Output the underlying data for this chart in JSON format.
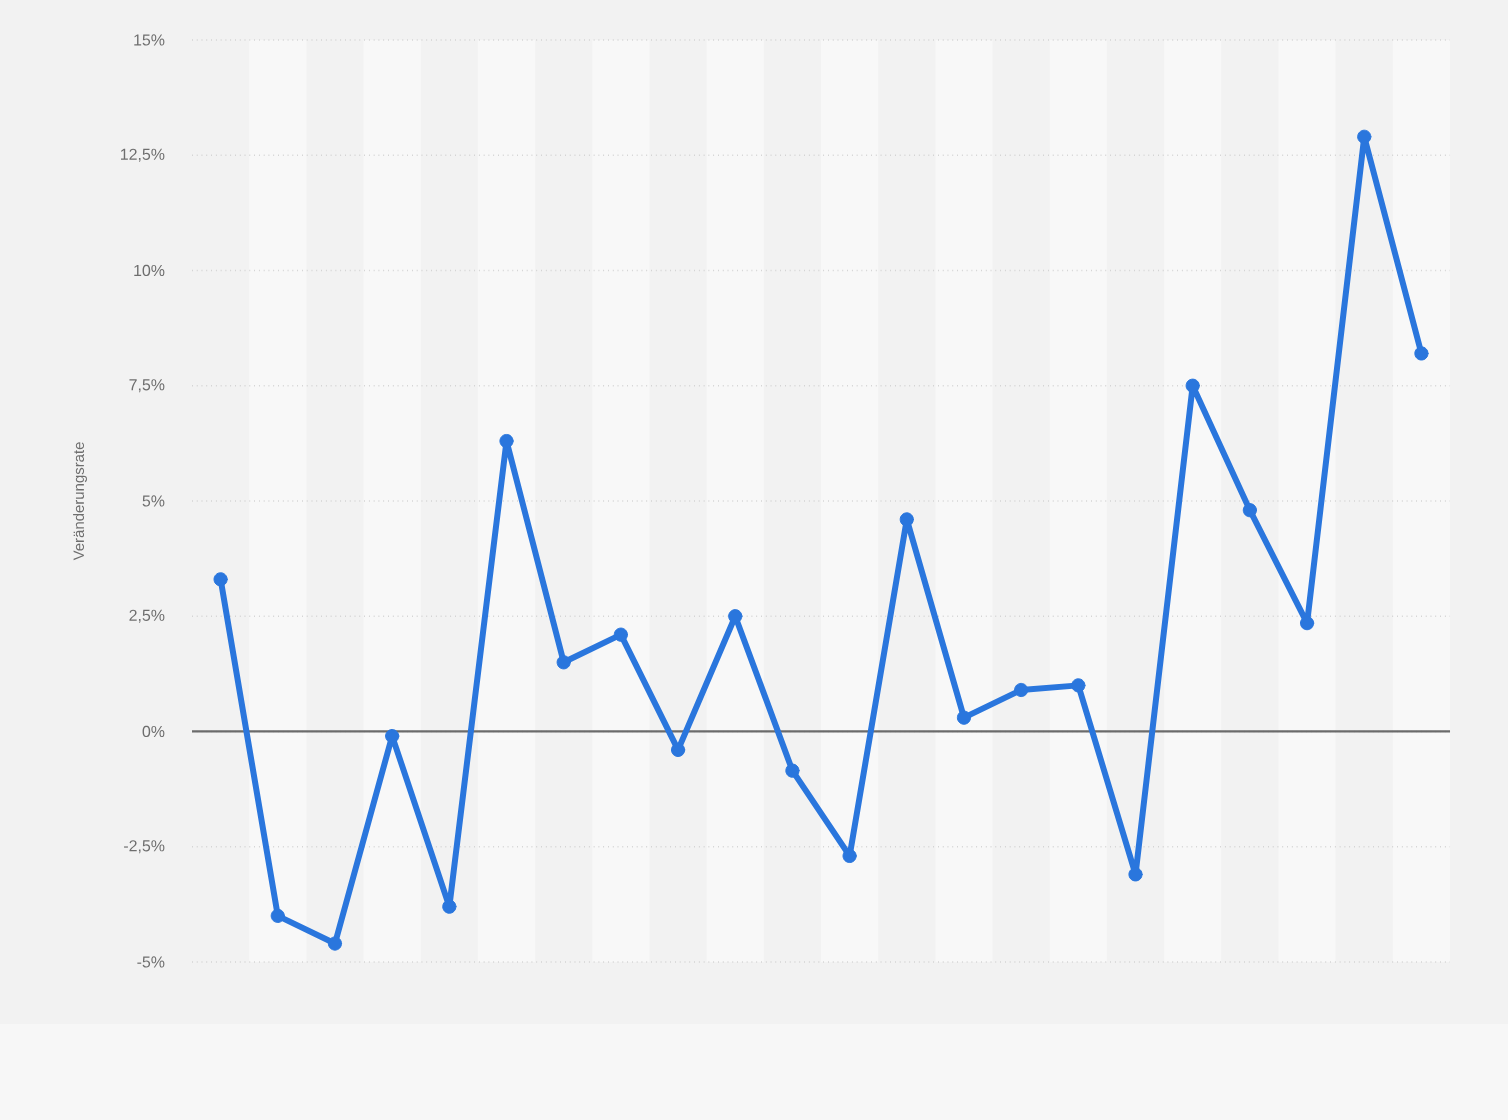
{
  "chart_data": {
    "type": "line",
    "ylabel": "Veränderungsrate",
    "categories": [
      null,
      null,
      null,
      null,
      null,
      null,
      null,
      null,
      null,
      null,
      null,
      null,
      null,
      null,
      null,
      null,
      null,
      null,
      null,
      null,
      null,
      null
    ],
    "values": [
      3.3,
      -4.0,
      -4.6,
      -0.1,
      -3.8,
      6.3,
      1.5,
      2.1,
      -0.4,
      2.5,
      -0.85,
      -2.7,
      4.6,
      0.3,
      0.9,
      1.0,
      -3.1,
      7.5,
      4.8,
      2.35,
      12.9,
      8.2
    ],
    "color": "#2a76dd",
    "marker": "circle",
    "line_style": "solid",
    "ylim": [
      -5,
      15
    ],
    "yticks": [
      {
        "value": -5,
        "label": "-5%"
      },
      {
        "value": -2.5,
        "label": "-2,5%"
      },
      {
        "value": 0,
        "label": "0%"
      },
      {
        "value": 2.5,
        "label": "2,5%"
      },
      {
        "value": 5,
        "label": "5%"
      },
      {
        "value": 7.5,
        "label": "7,5%"
      },
      {
        "value": 10,
        "label": "10%"
      },
      {
        "value": 12.5,
        "label": "12,5%"
      },
      {
        "value": 15,
        "label": "15%"
      }
    ],
    "grid": "y",
    "tick_labels": "y",
    "ref_lines": [
      {
        "axis": "y",
        "value": 0,
        "color": "#6b6b6b",
        "line_style": "solid"
      }
    ]
  }
}
